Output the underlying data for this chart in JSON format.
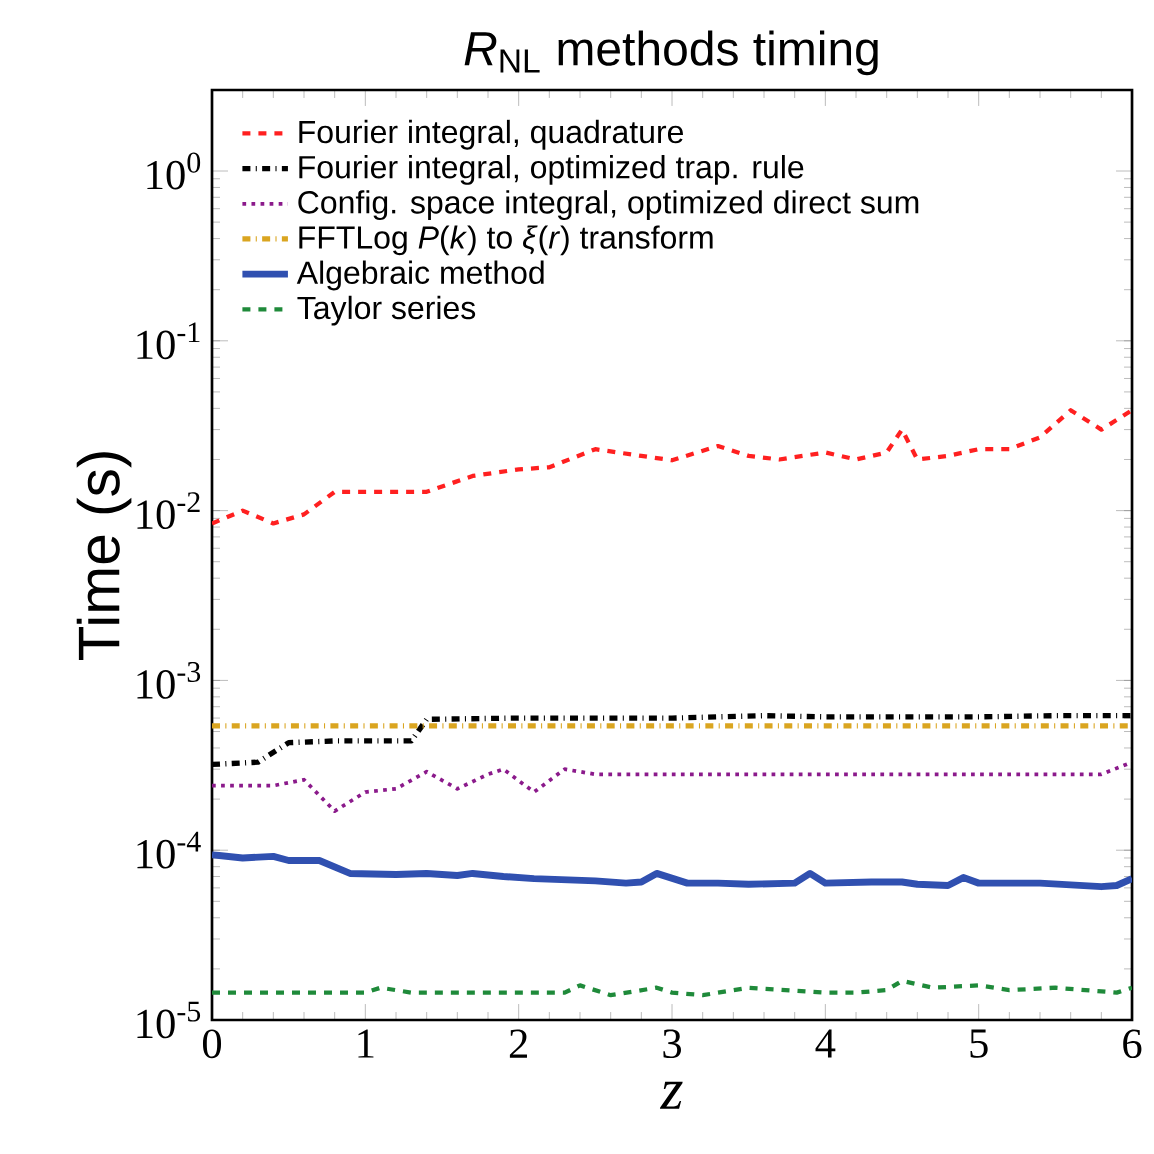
{
  "chart_data": {
    "type": "line",
    "title": "*R*$_{NL}$ methods timing",
    "xlabel": "z",
    "ylabel": "Time (s)",
    "log": "y",
    "legend": "top left",
    "grid": false,
    "xlim": [
      0,
      6
    ],
    "xticks": [
      0,
      1,
      2,
      3,
      4,
      5,
      6
    ],
    "ylim": [
      1e-05,
      3
    ],
    "yticks": [
      {
        "value": 1e-05,
        "label": "10$^{-5}$"
      },
      {
        "value": 0.0001,
        "label": "10$^{-4}$"
      },
      {
        "value": 0.001,
        "label": "10$^{-3}$"
      },
      {
        "value": 0.01,
        "label": "10$^{-2}$"
      },
      {
        "value": 0.1,
        "label": "10$^{-1}$"
      },
      {
        "value": 1,
        "label": "10$^{0}$"
      }
    ],
    "series": [
      {
        "name": "Fourier integral, quadrature",
        "color": "#ff2020",
        "line_style": "dashed",
        "x": [
          0,
          0.2,
          0.4,
          0.6,
          0.8,
          1.0,
          1.2,
          1.4,
          1.7,
          2.0,
          2.2,
          2.5,
          2.8,
          3.0,
          3.3,
          3.5,
          3.7,
          4.0,
          4.2,
          4.4,
          4.5,
          4.6,
          4.8,
          5.0,
          5.2,
          5.4,
          5.6,
          5.8,
          6.0
        ],
        "values": [
          0.0084,
          0.01,
          0.0084,
          0.0095,
          0.0129,
          0.0129,
          0.0129,
          0.0129,
          0.016,
          0.0175,
          0.018,
          0.023,
          0.021,
          0.0198,
          0.024,
          0.021,
          0.02,
          0.022,
          0.02,
          0.022,
          0.03,
          0.02,
          0.021,
          0.023,
          0.023,
          0.027,
          0.039,
          0.03,
          0.039
        ]
      },
      {
        "name": "Fourier integral, optimized trap. rule",
        "color": "#000000",
        "line_style": "dashdot",
        "x": [
          0,
          0.3,
          0.5,
          0.8,
          1.0,
          1.3,
          1.4,
          2.0,
          3.0,
          3.6,
          4.0,
          5.0,
          5.5,
          6.0
        ],
        "values": [
          0.00032,
          0.00033,
          0.00043,
          0.00044,
          0.00044,
          0.00044,
          0.00059,
          0.0006,
          0.0006,
          0.00062,
          0.00061,
          0.00061,
          0.00062,
          0.00062
        ]
      },
      {
        "name": "Config. space integral, optimized direct sum",
        "color": "#8b1a8b",
        "line_style": "dotted",
        "x": [
          0,
          0.4,
          0.6,
          0.8,
          1.0,
          1.2,
          1.4,
          1.6,
          1.8,
          1.9,
          2.1,
          2.3,
          2.5,
          3.0,
          4.0,
          5.0,
          5.8,
          6.0
        ],
        "values": [
          0.00024,
          0.00024,
          0.00026,
          0.00017,
          0.00022,
          0.00023,
          0.00029,
          0.00023,
          0.00028,
          0.0003,
          0.00022,
          0.0003,
          0.00028,
          0.00028,
          0.00028,
          0.00028,
          0.00028,
          0.00033
        ]
      },
      {
        "name": "FFTLog *P*(*k*) to *ξ*(*r*) transform",
        "color": "#daa520",
        "line_style": "dashdot",
        "x": [
          0,
          6
        ],
        "values": [
          0.00054,
          0.00054
        ]
      },
      {
        "name": "Algebraic method",
        "color": "#3050b0",
        "line_style": "solid",
        "x": [
          0,
          0.2,
          0.4,
          0.5,
          0.7,
          0.9,
          1.2,
          1.4,
          1.6,
          1.7,
          1.9,
          2.1,
          2.5,
          2.7,
          2.8,
          2.9,
          3.1,
          3.3,
          3.5,
          3.8,
          3.9,
          4.0,
          4.3,
          4.5,
          4.6,
          4.8,
          4.9,
          5.0,
          5.4,
          5.8,
          5.9,
          6.0
        ],
        "values": [
          9.4e-05,
          9e-05,
          9.2e-05,
          8.7e-05,
          8.7e-05,
          7.3e-05,
          7.2e-05,
          7.3e-05,
          7.1e-05,
          7.3e-05,
          7e-05,
          6.8e-05,
          6.6e-05,
          6.4e-05,
          6.5e-05,
          7.3e-05,
          6.4e-05,
          6.4e-05,
          6.3e-05,
          6.4e-05,
          7.3e-05,
          6.4e-05,
          6.5e-05,
          6.5e-05,
          6.3e-05,
          6.2e-05,
          6.9e-05,
          6.4e-05,
          6.4e-05,
          6.1e-05,
          6.2e-05,
          6.8e-05
        ]
      },
      {
        "name": "Taylor series",
        "color": "#1f8a3a",
        "line_style": "dashed",
        "x": [
          0,
          1.0,
          1.1,
          1.3,
          2.0,
          2.3,
          2.4,
          2.6,
          2.9,
          3.0,
          3.2,
          3.5,
          4.0,
          4.2,
          4.4,
          4.5,
          4.7,
          5.0,
          5.2,
          5.5,
          5.9,
          6.0
        ],
        "values": [
          1.45e-05,
          1.45e-05,
          1.55e-05,
          1.45e-05,
          1.45e-05,
          1.45e-05,
          1.6e-05,
          1.4e-05,
          1.55e-05,
          1.45e-05,
          1.4e-05,
          1.55e-05,
          1.45e-05,
          1.45e-05,
          1.5e-05,
          1.7e-05,
          1.55e-05,
          1.6e-05,
          1.5e-05,
          1.55e-05,
          1.45e-05,
          1.55e-05
        ]
      }
    ]
  }
}
